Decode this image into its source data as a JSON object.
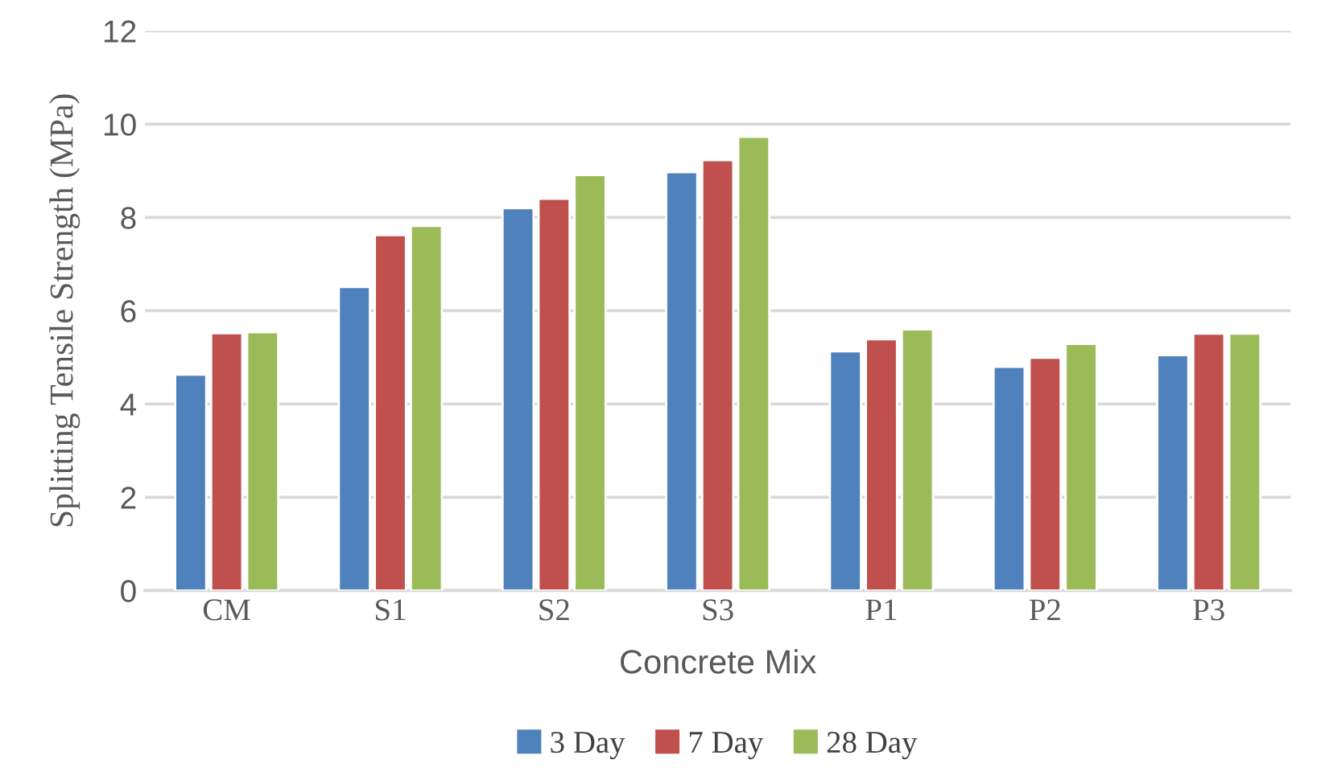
{
  "chart_data": {
    "type": "bar",
    "xlabel": "Concrete Mix",
    "ylabel": "Splitting Tensile Strength (MPa)",
    "categories": [
      "CM",
      "S1",
      "S2",
      "S3",
      "P1",
      "P2",
      "P3"
    ],
    "series": [
      {
        "name": "3 Day",
        "color": "#4f81bd",
        "values": [
          4.63,
          6.51,
          8.2,
          8.97,
          5.13,
          4.8,
          5.05
        ]
      },
      {
        "name": "7 Day",
        "color": "#c0504d",
        "values": [
          5.52,
          7.62,
          8.4,
          9.23,
          5.39,
          4.99,
          5.51
        ]
      },
      {
        "name": "28 Day",
        "color": "#9bbb59",
        "values": [
          5.54,
          7.82,
          8.91,
          9.73,
          5.6,
          5.29,
          5.51
        ]
      }
    ],
    "ylim": [
      0,
      12
    ],
    "yticks": [
      0,
      2,
      4,
      6,
      8,
      10,
      12
    ],
    "grid": "y",
    "legend": "bottom"
  }
}
